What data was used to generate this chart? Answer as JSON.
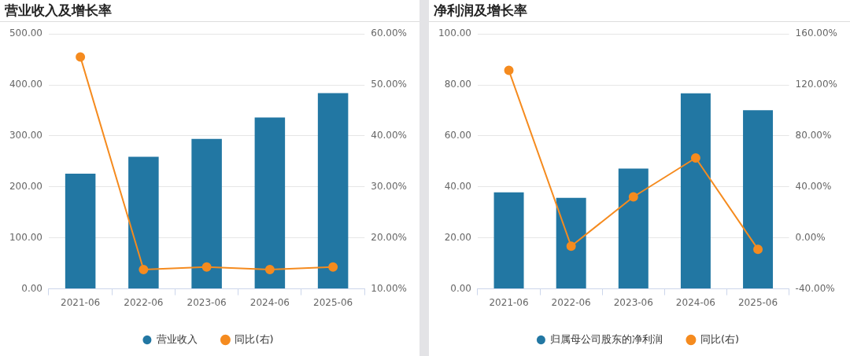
{
  "chart_data": [
    {
      "type": "bar",
      "title": "营业收入及增长率",
      "categories": [
        "2021-06",
        "2022-06",
        "2023-06",
        "2024-06",
        "2025-06"
      ],
      "series": [
        {
          "name": "营业收入",
          "color": "#2277a3",
          "values": [
            226,
            259,
            294,
            336,
            384
          ]
        },
        {
          "name": "同比(右)",
          "type": "line",
          "axis": "y2",
          "color": "#f58b1f",
          "values": [
            55.5,
            13.8,
            14.3,
            13.8,
            14.3
          ]
        }
      ],
      "ylim": [
        0,
        500
      ],
      "yticks": [
        {
          "value": 0,
          "label": "0.00"
        },
        {
          "value": 100,
          "label": "100.00"
        },
        {
          "value": 200,
          "label": "200.00"
        },
        {
          "value": 300,
          "label": "300.00"
        },
        {
          "value": 400,
          "label": "400.00"
        },
        {
          "value": 500,
          "label": "500.00"
        }
      ],
      "y2lim": [
        10,
        60
      ],
      "y2ticks": [
        {
          "value": 10,
          "label": "10.00%"
        },
        {
          "value": 20,
          "label": "20.00%"
        },
        {
          "value": 30,
          "label": "30.00%"
        },
        {
          "value": 40,
          "label": "40.00%"
        },
        {
          "value": 50,
          "label": "50.00%"
        },
        {
          "value": 60,
          "label": "60.00%"
        }
      ],
      "grid": "y",
      "legend": "bottom",
      "marker": "circle"
    },
    {
      "type": "bar",
      "title": "净利润及增长率",
      "categories": [
        "2021-06",
        "2022-06",
        "2023-06",
        "2024-06",
        "2025-06"
      ],
      "series": [
        {
          "name": "归属母公司股东的净利润",
          "color": "#2277a3",
          "values": [
            37.9,
            35.7,
            47.2,
            76.7,
            70.1
          ]
        },
        {
          "name": "同比(右)",
          "type": "line",
          "axis": "y2",
          "color": "#f58b1f",
          "values": [
            131.4,
            -6.5,
            32.2,
            62.7,
            -8.9
          ]
        }
      ],
      "ylim": [
        0,
        100
      ],
      "yticks": [
        {
          "value": 0,
          "label": "0.00"
        },
        {
          "value": 20,
          "label": "20.00"
        },
        {
          "value": 40,
          "label": "40.00"
        },
        {
          "value": 60,
          "label": "60.00"
        },
        {
          "value": 80,
          "label": "80.00"
        },
        {
          "value": 100,
          "label": "100.00"
        }
      ],
      "y2lim": [
        -40,
        160
      ],
      "y2ticks": [
        {
          "value": -40,
          "label": "-40.00%"
        },
        {
          "value": 0,
          "label": "0.00%"
        },
        {
          "value": 40,
          "label": "40.00%"
        },
        {
          "value": 80,
          "label": "80.00%"
        },
        {
          "value": 120,
          "label": "120.00%"
        },
        {
          "value": 160,
          "label": "160.00%"
        }
      ],
      "grid": "y",
      "legend": "bottom",
      "marker": "circle"
    }
  ]
}
